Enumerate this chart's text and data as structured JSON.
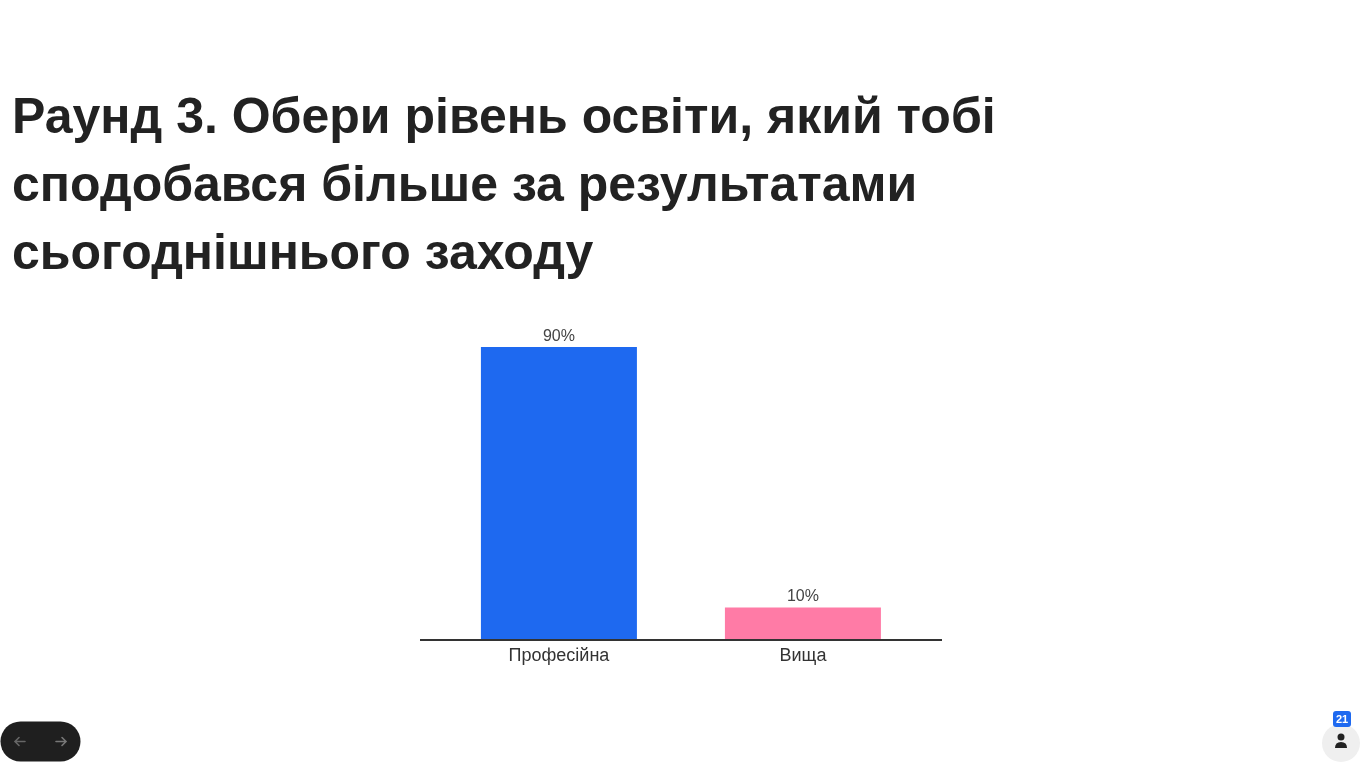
{
  "chart_data": {
    "type": "bar",
    "title": "Раунд 3. Обери рівень освіти, який тобі сподобався більше за результатами сьогоднішнього заходу",
    "categories": [
      "Професійна",
      "Вища"
    ],
    "values": [
      90,
      10
    ],
    "colors": [
      "#1e69f0",
      "#ff7ba6"
    ],
    "value_labels": [
      "90%",
      "10%"
    ],
    "tick_labels": "x",
    "annotations": [
      "21"
    ]
  }
}
